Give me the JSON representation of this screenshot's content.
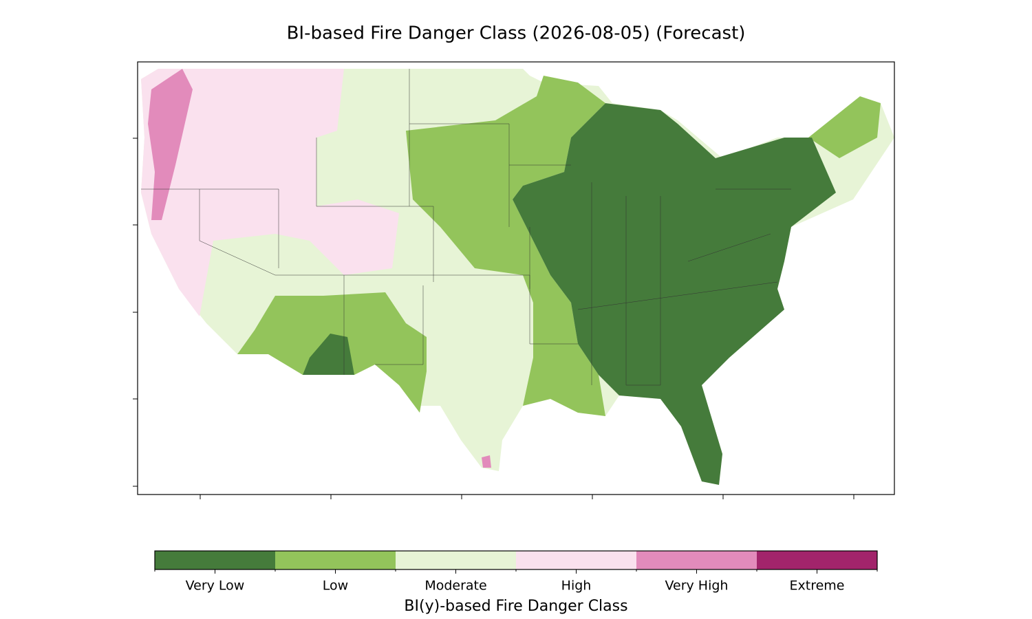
{
  "title": "BI-based Fire Danger Class (2026-08-05) (Forecast)",
  "colorbar": {
    "label": "BI(y)-based Fire Danger Class",
    "classes": [
      {
        "name": "Very Low",
        "color": "#457b3b"
      },
      {
        "name": "Low",
        "color": "#93c45b"
      },
      {
        "name": "Moderate",
        "color": "#e7f4d6"
      },
      {
        "name": "High",
        "color": "#fae1ee"
      },
      {
        "name": "Very High",
        "color": "#e28bbb"
      },
      {
        "name": "Extreme",
        "color": "#a2246b"
      }
    ]
  }
}
